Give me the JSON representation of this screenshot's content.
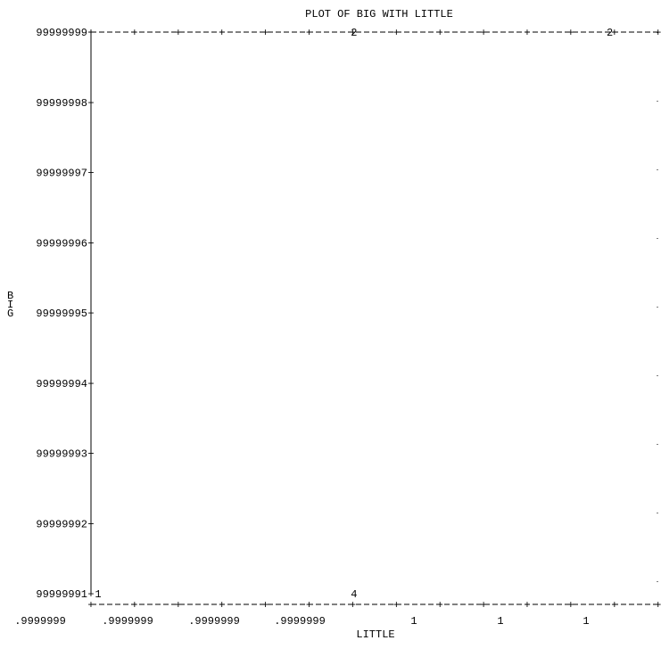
{
  "chart_data": {
    "type": "scatter",
    "title": "PLOT OF BIG WITH LITTLE",
    "xlabel": "LITTLE",
    "ylabel": "BIG",
    "ylim": [
      99999991,
      99999999
    ],
    "y_ticks": [
      "99999999",
      "99999998",
      "99999997",
      "99999996",
      "99999995",
      "99999994",
      "99999993",
      "99999992",
      "99999991"
    ],
    "x_tick_labels": [
      ".9999999",
      ".9999999",
      ".9999999",
      ".9999999",
      "1",
      "1",
      "1"
    ],
    "points": [
      {
        "symbol": "2",
        "col": 6,
        "y": 99999999
      },
      {
        "symbol": "2",
        "col": 12,
        "y": 99999999
      },
      {
        "symbol": "1",
        "col": 0,
        "y": 99999991
      },
      {
        "symbol": "4",
        "col": 6,
        "y": 99999991
      }
    ],
    "grid": false
  }
}
